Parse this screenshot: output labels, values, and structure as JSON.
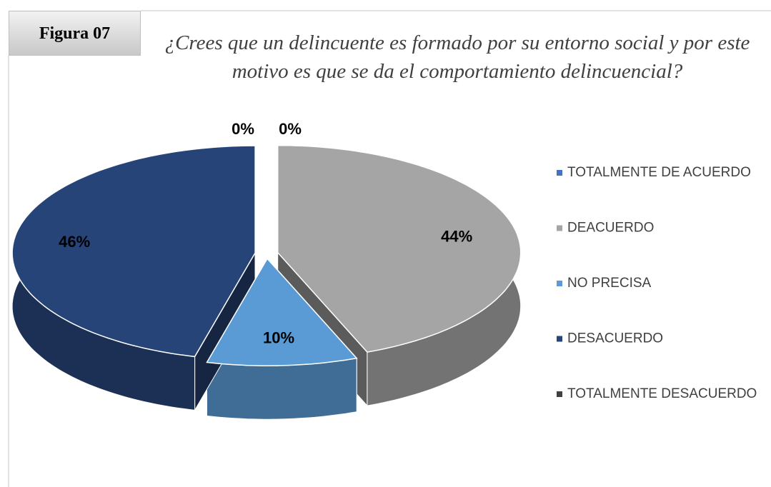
{
  "figure_label": "Figura 07",
  "chart_data": {
    "type": "pie",
    "title": "¿Crees que un delincuente es formado por su entorno social y por este motivo es que se da el comportamiento delincuencial?",
    "categories": [
      "TOTALMENTE DE ACUERDO",
      "DEACUERDO",
      "NO PRECISA",
      "DESACUERDO",
      "TOTALMENTE DESACUERDO"
    ],
    "values": [
      0,
      44,
      10,
      46,
      0
    ],
    "value_labels": [
      "0%",
      "44%",
      "10%",
      "46%",
      "0%"
    ],
    "colors": [
      "#4472c4",
      "#a5a5a5",
      "#5b9bd5",
      "#264478",
      "#404040"
    ],
    "legend": "right"
  }
}
